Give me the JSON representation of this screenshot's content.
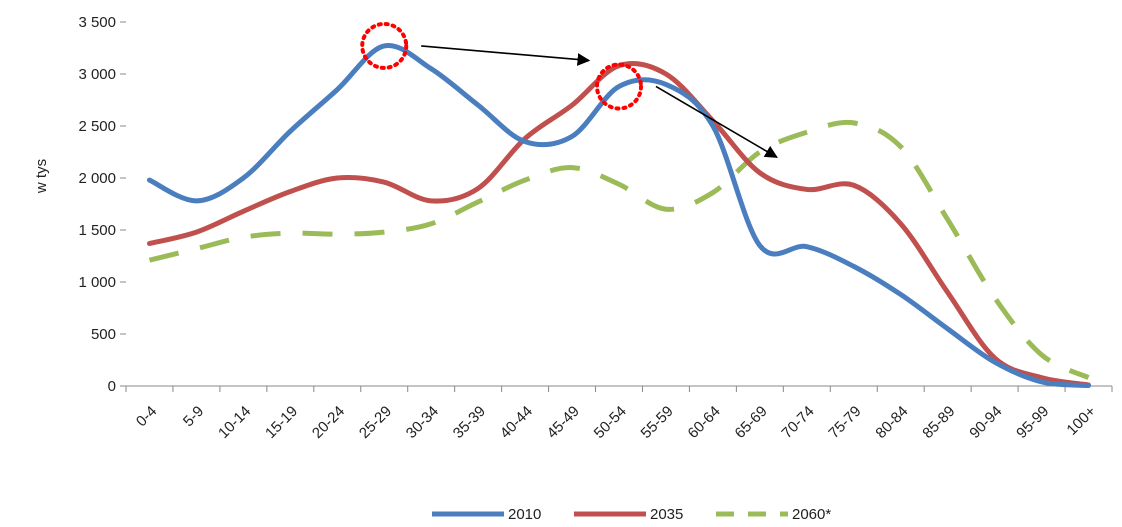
{
  "chart_data": {
    "type": "line",
    "ylabel": "w tys",
    "xlabel": "",
    "title": "",
    "ylim": [
      0,
      3500
    ],
    "yticks": [
      0,
      500,
      1000,
      1500,
      2000,
      2500,
      3000,
      3500
    ],
    "ytick_labels": [
      "0",
      "500",
      "1 000",
      "1 500",
      "2 000",
      "2 500",
      "3 000",
      "3 500"
    ],
    "categories": [
      "0-4",
      "5-9",
      "10-14",
      "15-19",
      "20-24",
      "25-29",
      "30-34",
      "35-39",
      "40-44",
      "45-49",
      "50-54",
      "55-59",
      "60-64",
      "65-69",
      "70-74",
      "75-79",
      "80-84",
      "85-89",
      "90-94",
      "95-99",
      "100+"
    ],
    "series": [
      {
        "name": "2010",
        "color": "#4a7ebf",
        "dash": "solid",
        "values": [
          1980,
          1780,
          2000,
          2450,
          2850,
          3270,
          3050,
          2700,
          2350,
          2400,
          2880,
          2900,
          2500,
          1350,
          1340,
          1150,
          880,
          550,
          230,
          40,
          5
        ]
      },
      {
        "name": "2035",
        "color": "#c0504d",
        "dash": "solid",
        "values": [
          1370,
          1480,
          1680,
          1870,
          2000,
          1960,
          1780,
          1900,
          2380,
          2700,
          3080,
          3000,
          2550,
          2050,
          1890,
          1930,
          1560,
          900,
          270,
          80,
          10
        ]
      },
      {
        "name": "2060*",
        "color": "#9bbb59",
        "dash": "dashed",
        "values": [
          1210,
          1320,
          1430,
          1470,
          1460,
          1480,
          1560,
          1770,
          1980,
          2100,
          1940,
          1700,
          1860,
          2250,
          2440,
          2530,
          2300,
          1600,
          850,
          300,
          80
        ]
      }
    ],
    "grid": false,
    "legend_position": "bottom",
    "annotations": [
      {
        "type": "circle",
        "series": "2010",
        "category": "25-29",
        "color": "#ff0000",
        "style": "dotted"
      },
      {
        "type": "circle",
        "series": "2010",
        "category": "50-54",
        "color": "#ff0000",
        "style": "dotted"
      },
      {
        "type": "arrow",
        "from_category": "30-34",
        "from_value": 3270,
        "to_category": "50-54",
        "to_value": 3130,
        "color": "#000000"
      },
      {
        "type": "arrow",
        "from_category": "55-59",
        "from_value": 2880,
        "to_category": "70-74",
        "to_value": 2200,
        "color": "#000000"
      }
    ]
  }
}
